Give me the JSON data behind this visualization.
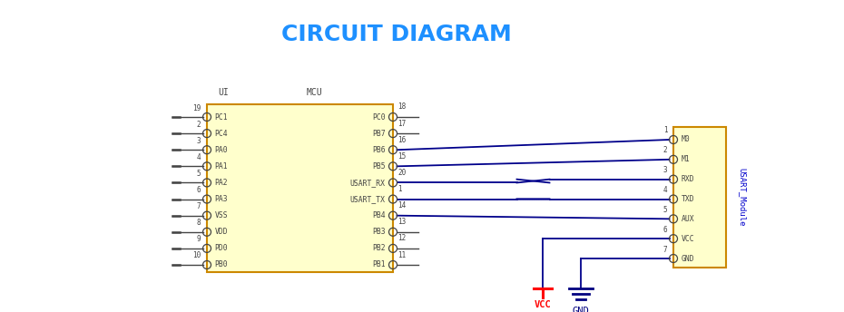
{
  "title": "CIRCUIT DIAGRAM",
  "title_color": "#1E90FF",
  "title_fontsize": 18,
  "bg_color": "#FFFFFF",
  "mcu_fill": "#FFFFCC",
  "mcu_edge": "#CC8800",
  "module_fill": "#FFFFCC",
  "module_edge": "#CC8800",
  "label_color": "#444444",
  "wire_color": "#00008B",
  "pin_color": "#444444",
  "vcc_color": "#FF0000",
  "gnd_color": "#000080",
  "ui_label": "UI",
  "mcu_label": "MCU",
  "module_label": "USART_Module",
  "left_pins": [
    {
      "num": "19",
      "name": "PC1"
    },
    {
      "num": "2",
      "name": "PC4"
    },
    {
      "num": "3",
      "name": "PA0"
    },
    {
      "num": "4",
      "name": "PA1"
    },
    {
      "num": "5",
      "name": "PA2"
    },
    {
      "num": "6",
      "name": "PA3"
    },
    {
      "num": "7",
      "name": "VSS"
    },
    {
      "num": "8",
      "name": "VDD"
    },
    {
      "num": "9",
      "name": "PD0"
    },
    {
      "num": "10",
      "name": "PB0"
    }
  ],
  "right_pins": [
    {
      "num": "18",
      "name": "PC0",
      "connect": "none"
    },
    {
      "num": "17",
      "name": "PB7",
      "connect": "none"
    },
    {
      "num": "16",
      "name": "PB6",
      "connect": "M0"
    },
    {
      "num": "15",
      "name": "PB5",
      "connect": "M1"
    },
    {
      "num": "20",
      "name": "USART_RX",
      "connect": "RXD",
      "cross": true
    },
    {
      "num": "1",
      "name": "USART_TX",
      "connect": "TXD",
      "cross": true
    },
    {
      "num": "14",
      "name": "PB4",
      "connect": "AUX"
    },
    {
      "num": "13",
      "name": "PB3",
      "connect": "none"
    },
    {
      "num": "12",
      "name": "PB2",
      "connect": "none"
    },
    {
      "num": "11",
      "name": "PB1",
      "connect": "none"
    }
  ],
  "module_pins": [
    {
      "num": "1",
      "name": "M0"
    },
    {
      "num": "2",
      "name": "M1"
    },
    {
      "num": "3",
      "name": "RXD"
    },
    {
      "num": "4",
      "name": "TXD"
    },
    {
      "num": "5",
      "name": "AUX"
    },
    {
      "num": "6",
      "name": "VCC"
    },
    {
      "num": "7",
      "name": "GND"
    }
  ]
}
